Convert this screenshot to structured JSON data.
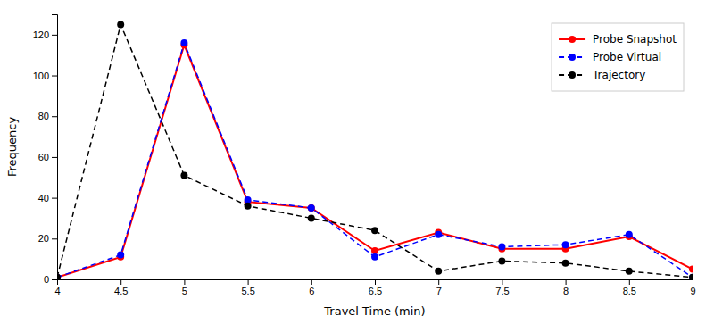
{
  "chart_data": {
    "type": "line",
    "xlabel": "Travel Time (min)",
    "ylabel": "Frequency",
    "x": [
      4,
      4.5,
      5,
      5.5,
      6,
      6.5,
      7,
      7.5,
      8,
      8.5,
      9
    ],
    "series": [
      {
        "name": "Probe Snapshot",
        "color": "#ff0000",
        "line_style": "solid",
        "marker": "circle",
        "values": [
          1,
          11,
          115,
          38,
          35,
          14,
          23,
          15,
          15,
          21,
          5
        ]
      },
      {
        "name": "Probe Virtual",
        "color": "#0000ff",
        "line_style": "dashed",
        "marker": "circle",
        "values": [
          1,
          12,
          116,
          39,
          35,
          11,
          22,
          16,
          17,
          22,
          1
        ]
      },
      {
        "name": "Trajectory",
        "color": "#000000",
        "line_style": "dashed",
        "marker": "circle",
        "values": [
          1,
          125,
          51,
          36,
          30,
          24,
          4,
          9,
          8,
          4,
          1
        ]
      }
    ],
    "xlim": [
      4,
      9
    ],
    "ylim": [
      0,
      130
    ],
    "xticks": [
      4,
      4.5,
      5,
      5.5,
      6,
      6.5,
      7,
      7.5,
      8,
      8.5,
      9
    ],
    "yticks": [
      0,
      20,
      40,
      60,
      80,
      100,
      120
    ],
    "legend": "upper right",
    "grid": false
  }
}
